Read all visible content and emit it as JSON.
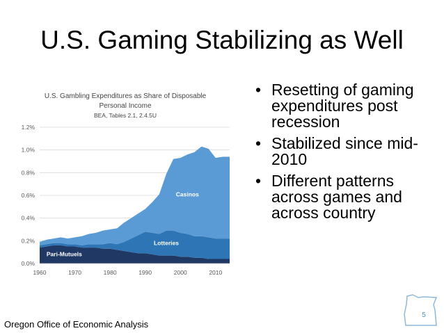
{
  "slide": {
    "title": "U.S. Gaming Stabilizing as Well",
    "bullets": [
      "Resetting of gaming expenditures post recession",
      "Stabilized since mid-2010",
      "Different patterns across games and across country"
    ],
    "bullet_glyph": "•",
    "footer": "Oregon Office of Economic Analysis",
    "page_number": "5",
    "logo_icon": "oregon-state-outline-icon"
  },
  "chart_data": {
    "type": "area",
    "stacked": true,
    "title": "U.S. Gambling Expenditures as Share of Disposable Personal Income",
    "subtitle": "BEA, Tables 2.1, 2.4.5U",
    "xlabel": "",
    "ylabel": "",
    "xlim": [
      1960,
      2014
    ],
    "ylim": [
      0,
      1.2
    ],
    "x_ticks": [
      "1960",
      "1970",
      "1980",
      "1990",
      "2000",
      "2010"
    ],
    "y_ticks": [
      "0.0%",
      "0.2%",
      "0.4%",
      "0.6%",
      "0.8%",
      "1.0%",
      "1.2%"
    ],
    "grid": true,
    "legend": "inline labels",
    "x": [
      1960,
      1962,
      1964,
      1966,
      1968,
      1970,
      1972,
      1974,
      1976,
      1978,
      1980,
      1982,
      1984,
      1986,
      1988,
      1990,
      1992,
      1994,
      1996,
      1998,
      2000,
      2002,
      2004,
      2006,
      2008,
      2010,
      2012,
      2014
    ],
    "series": [
      {
        "name": "Pari-Mutuels",
        "color": "#1f3864",
        "values": [
          0.14,
          0.15,
          0.16,
          0.16,
          0.15,
          0.15,
          0.14,
          0.14,
          0.14,
          0.13,
          0.13,
          0.12,
          0.11,
          0.1,
          0.09,
          0.09,
          0.08,
          0.07,
          0.07,
          0.07,
          0.06,
          0.06,
          0.05,
          0.05,
          0.04,
          0.04,
          0.04,
          0.04
        ]
      },
      {
        "name": "Lotteries",
        "color": "#2e75b6",
        "values": [
          0.02,
          0.02,
          0.02,
          0.02,
          0.02,
          0.02,
          0.02,
          0.03,
          0.03,
          0.04,
          0.05,
          0.05,
          0.08,
          0.12,
          0.16,
          0.19,
          0.19,
          0.19,
          0.22,
          0.22,
          0.21,
          0.2,
          0.19,
          0.19,
          0.19,
          0.18,
          0.18,
          0.18
        ]
      },
      {
        "name": "Casinos",
        "color": "#5b9bd5",
        "values": [
          0.03,
          0.04,
          0.04,
          0.05,
          0.05,
          0.06,
          0.08,
          0.09,
          0.1,
          0.12,
          0.12,
          0.14,
          0.17,
          0.18,
          0.19,
          0.2,
          0.27,
          0.35,
          0.5,
          0.63,
          0.66,
          0.7,
          0.74,
          0.79,
          0.78,
          0.71,
          0.72,
          0.72
        ]
      }
    ]
  }
}
